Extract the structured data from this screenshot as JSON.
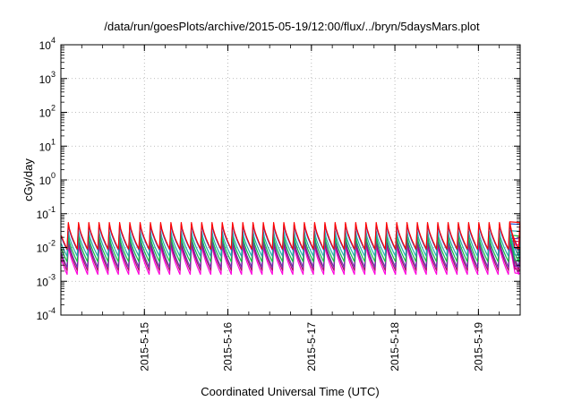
{
  "chart_data": {
    "type": "line",
    "title": "/data/run/goesPlots/archive/2015-05-19/12:00/flux/../bryn/5daysMars.plot",
    "xlabel": "Coordinated Universal Time (UTC)",
    "ylabel": "cGy/day",
    "y_scale": "log",
    "ylim": [
      0.0001,
      10000
    ],
    "xlim": [
      "2015-05-14 00:00",
      "2015-05-19 12:00"
    ],
    "grid": true,
    "legend": "none",
    "y_ticks": [
      {
        "base": "10",
        "exp": "-4",
        "value": 0.0001
      },
      {
        "base": "10",
        "exp": "-3",
        "value": 0.001
      },
      {
        "base": "10",
        "exp": "-2",
        "value": 0.01
      },
      {
        "base": "10",
        "exp": "-1",
        "value": 0.1
      },
      {
        "base": "10",
        "exp": "0",
        "value": 1
      },
      {
        "base": "10",
        "exp": "1",
        "value": 10
      },
      {
        "base": "10",
        "exp": "2",
        "value": 100
      },
      {
        "base": "10",
        "exp": "3",
        "value": 1000
      },
      {
        "base": "10",
        "exp": "4",
        "value": 10000
      }
    ],
    "x_ticks": [
      {
        "label": "2015-5-15",
        "value": "2015-05-15 00:00"
      },
      {
        "label": "2015-5-16",
        "value": "2015-05-16 00:00"
      },
      {
        "label": "2015-5-17",
        "value": "2015-05-17 00:00"
      },
      {
        "label": "2015-5-18",
        "value": "2015-05-18 00:00"
      },
      {
        "label": "2015-5-19",
        "value": "2015-05-19 00:00"
      }
    ],
    "pattern": {
      "description_values": "sawtooth with sharp rise then decay, repeating",
      "cycle_hours": 2.95,
      "start": "2015-05-14 00:00",
      "end": "2015-05-19 12:00"
    },
    "series": [
      {
        "color": "#ff0000",
        "peak": 0.055,
        "trough": 0.009
      },
      {
        "color": "#2255dd",
        "peak": 0.048,
        "trough": 0.0085
      },
      {
        "color": "#22aaaa",
        "peak": 0.03,
        "trough": 0.0055
      },
      {
        "color": "#11bb44",
        "peak": 0.022,
        "trough": 0.0038
      },
      {
        "color": "#6633aa",
        "peak": 0.018,
        "trough": 0.0026
      },
      {
        "color": "#aa1166",
        "peak": 0.015,
        "trough": 0.0021
      },
      {
        "color": "#ff00dd",
        "peak": 0.012,
        "trough": 0.0016
      }
    ]
  }
}
